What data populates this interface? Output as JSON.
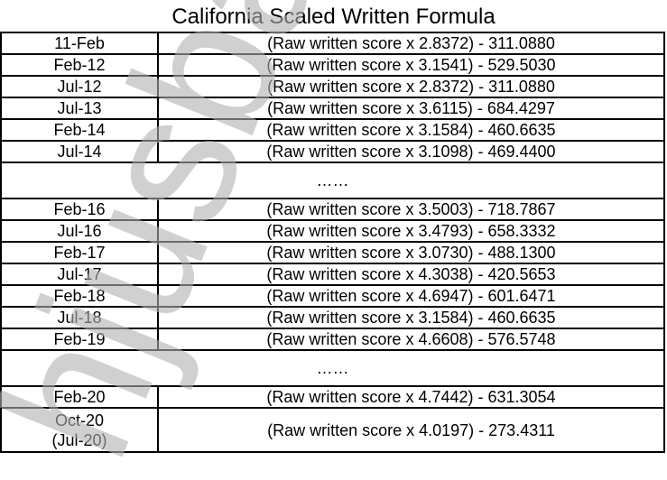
{
  "title": "California Scaled Written Formula",
  "ellipsis": "……",
  "rows_a": [
    {
      "date": "11-Feb",
      "formula": "(Raw written score x 2.8372) - 311.0880"
    },
    {
      "date": "Feb-12",
      "formula": "(Raw written score x 3.1541) - 529.5030"
    },
    {
      "date": "Jul-12",
      "formula": "(Raw written score x 2.8372) - 311.0880"
    },
    {
      "date": "Jul-13",
      "formula": "(Raw written score x 3.6115) - 684.4297"
    },
    {
      "date": "Feb-14",
      "formula": "(Raw written score x 3.1584) - 460.6635"
    },
    {
      "date": "Jul-14",
      "formula": "(Raw written score x 3.1098) - 469.4400"
    }
  ],
  "rows_b": [
    {
      "date": "Feb-16",
      "formula": "(Raw written score x 3.5003) - 718.7867"
    },
    {
      "date": "Jul-16",
      "formula": "(Raw written score x 3.4793) - 658.3332"
    },
    {
      "date": "Feb-17",
      "formula": "(Raw written score x 3.0730) - 488.1300"
    },
    {
      "date": "Jul-17",
      "formula": "(Raw written score x 4.3038) - 420.5653"
    },
    {
      "date": "Feb-18",
      "formula": "(Raw written score x 4.6947) - 601.6471"
    },
    {
      "date": "Jul-18",
      "formula": "(Raw written score x 3.1584) - 460.6635"
    },
    {
      "date": "Feb-19",
      "formula": "(Raw written score x 4.6608) - 576.5748"
    }
  ],
  "rows_c": [
    {
      "date": "Feb-20",
      "formula": "(Raw written score x 4.7442) - 631.3054"
    },
    {
      "date": "Oct-20",
      "date2": "(Jul-20)",
      "formula": "(Raw written score x 4.0197) - 273.4311"
    }
  ],
  "watermark": "hjusbar",
  "watermark_color": "#b0b0b0"
}
